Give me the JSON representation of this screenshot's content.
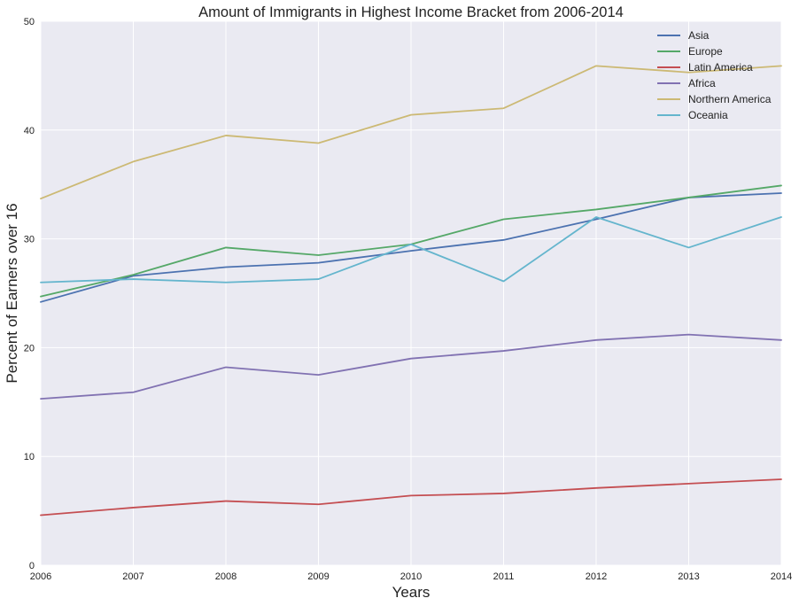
{
  "chart_data": {
    "type": "line",
    "title": "Amount of Immigrants in Highest Income Bracket from 2006-2014",
    "xlabel": "Years",
    "ylabel": "Percent of Earners over 16",
    "x": [
      2006,
      2007,
      2008,
      2009,
      2010,
      2011,
      2012,
      2013,
      2014
    ],
    "xlim": [
      2006,
      2014
    ],
    "ylim": [
      0,
      50
    ],
    "xticks": [
      "2006",
      "2007",
      "2008",
      "2009",
      "2010",
      "2011",
      "2012",
      "2013",
      "2014"
    ],
    "yticks": [
      "0",
      "10",
      "20",
      "30",
      "40",
      "50"
    ],
    "grid": true,
    "legend_position": "top-right",
    "series": [
      {
        "name": "Asia",
        "color": "#4c72b0",
        "values": [
          24.2,
          26.6,
          27.4,
          27.8,
          28.9,
          29.9,
          31.8,
          33.8,
          34.2
        ]
      },
      {
        "name": "Europe",
        "color": "#55a868",
        "values": [
          24.7,
          26.7,
          29.2,
          28.5,
          29.5,
          31.8,
          32.7,
          33.8,
          34.9
        ]
      },
      {
        "name": "Latin America",
        "color": "#c44e52",
        "values": [
          4.6,
          5.3,
          5.9,
          5.6,
          6.4,
          6.6,
          7.1,
          7.5,
          7.9
        ]
      },
      {
        "name": "Africa",
        "color": "#8172b2",
        "values": [
          15.3,
          15.9,
          18.2,
          17.5,
          19.0,
          19.7,
          20.7,
          21.2,
          20.7
        ]
      },
      {
        "name": "Northern America",
        "color": "#ccb974",
        "values": [
          33.7,
          37.1,
          39.5,
          38.8,
          41.4,
          42.0,
          45.9,
          45.3,
          45.9
        ]
      },
      {
        "name": "Oceania",
        "color": "#64b5cd",
        "values": [
          26.0,
          26.3,
          26.0,
          26.3,
          29.5,
          26.1,
          32.0,
          29.2,
          32.0
        ]
      }
    ]
  },
  "style": {
    "plot_background": "#eaeaf2",
    "grid_color": "#ffffff"
  }
}
